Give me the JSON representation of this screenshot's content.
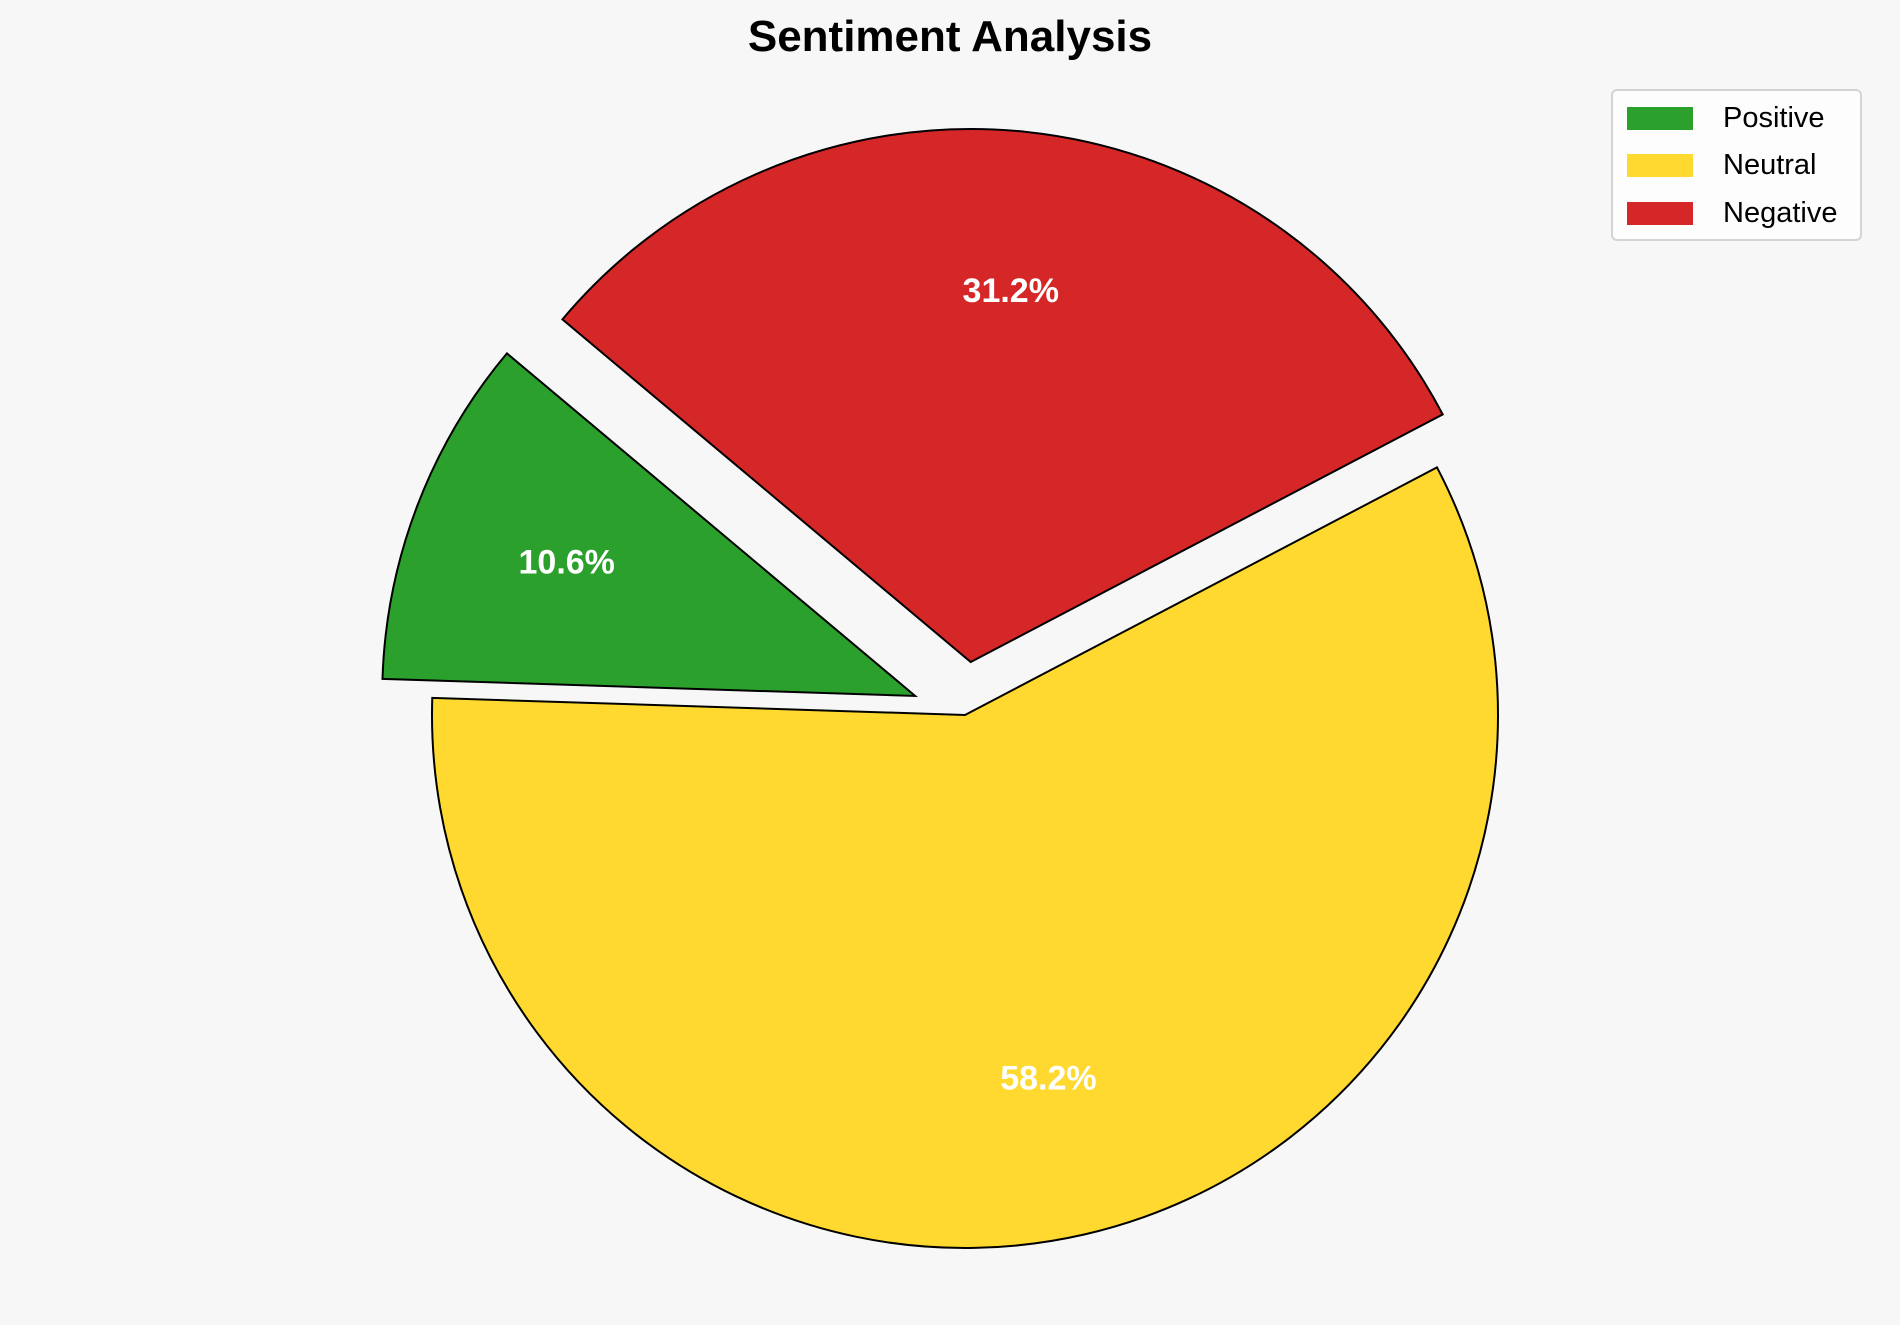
{
  "chart_data": {
    "type": "pie",
    "title": "Sentiment Analysis",
    "categories": [
      "Positive",
      "Neutral",
      "Negative"
    ],
    "values": [
      10.6,
      58.2,
      31.2
    ],
    "labels": [
      "10.6%",
      "58.2%",
      "31.2%"
    ],
    "colors": [
      "#2ca02c",
      "#ffd92f",
      "#d62728"
    ],
    "explode": [
      0.1,
      0,
      0.1
    ],
    "start_angle": 140,
    "legend_position": "top-right"
  }
}
